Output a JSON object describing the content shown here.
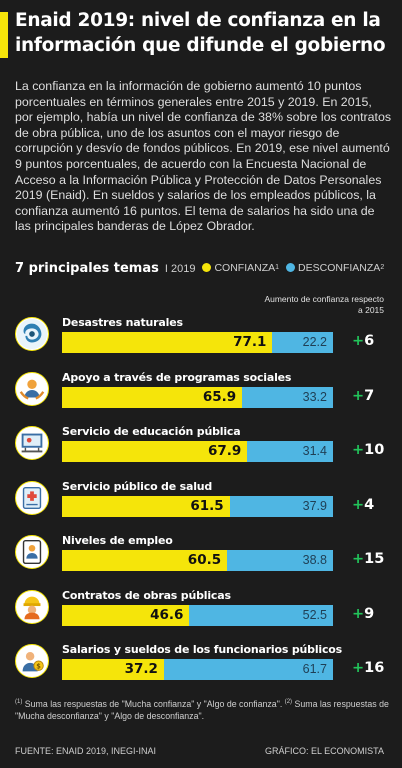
{
  "title": "Enaid 2019: nivel de confianza en la información que difunde el gobierno",
  "body": "La confianza en la información de gobierno aumentó 10 puntos porcentuales en términos generales entre 2015 y 2019. En 2015, por ejemplo, había un nivel de confianza de 38% sobre los contratos de obra pública, uno de los asuntos con el mayor riesgo de corrupción y desvío de fondos públicos. En 2019, ese nivel aumentó 9 puntos porcentuales, de acuerdo con la Encuesta Nacional de Acceso a la Información Pública y Protección de Datos Personales 2019 (Enaid). En sueldos y salarios de los empleados públicos, la confianza aumentó 16 puntos. El tema de salarios ha sido una de las principales banderas de López Obrador.",
  "legend": {
    "heading": "7 principales temas",
    "year": "I 2019",
    "confianza": "CONFIANZA",
    "confianza_sup": "1",
    "desconfianza": "DESCONFIANZA",
    "desconfianza_sup": "2"
  },
  "increase_header": "Aumento de confianza respecto a 2015",
  "colors": {
    "confianza": "#f5e50a",
    "desconfianza": "#4fb6e3",
    "increase": "#22c35a",
    "background": "#1c1c1c"
  },
  "chart_data": {
    "type": "bar",
    "orientation": "horizontal-stacked",
    "categories": [
      "Desastres naturales",
      "Apoyo a través de programas sociales",
      "Servicio de educación pública",
      "Servicio público de salud",
      "Niveles de empleo",
      "Contratos de obras públicas",
      "Salarios y sueldos de los funcionarios públicos"
    ],
    "icons": [
      "hurricane-icon",
      "social-programs-icon",
      "education-icon",
      "health-icon",
      "employment-icon",
      "public-works-icon",
      "salaries-icon"
    ],
    "series": [
      {
        "name": "CONFIANZA",
        "values": [
          77.1,
          65.9,
          67.9,
          61.5,
          60.5,
          46.6,
          37.2
        ]
      },
      {
        "name": "DESCONFIANZA",
        "values": [
          22.2,
          33.2,
          31.4,
          37.9,
          38.8,
          52.5,
          61.7
        ]
      }
    ],
    "increase": [
      "+6",
      "+7",
      "+10",
      "+4",
      "+15",
      "+9",
      "+16"
    ],
    "xlim": [
      0,
      100
    ],
    "title": "7 principales temas"
  },
  "notes": {
    "n1": "(1)",
    "t1": " Suma las respuestas de \"Mucha confianza\" y \"Algo de confianza\". ",
    "n2": "(2)",
    "t2": " Suma las respuestas de \"Mucha desconfianza\" y \"Algo de desconfianza\"."
  },
  "source": "FUENTE: ENAID 2019, INEGI-INAI",
  "credit": "GRÁFICO: EL ECONOMISTA"
}
